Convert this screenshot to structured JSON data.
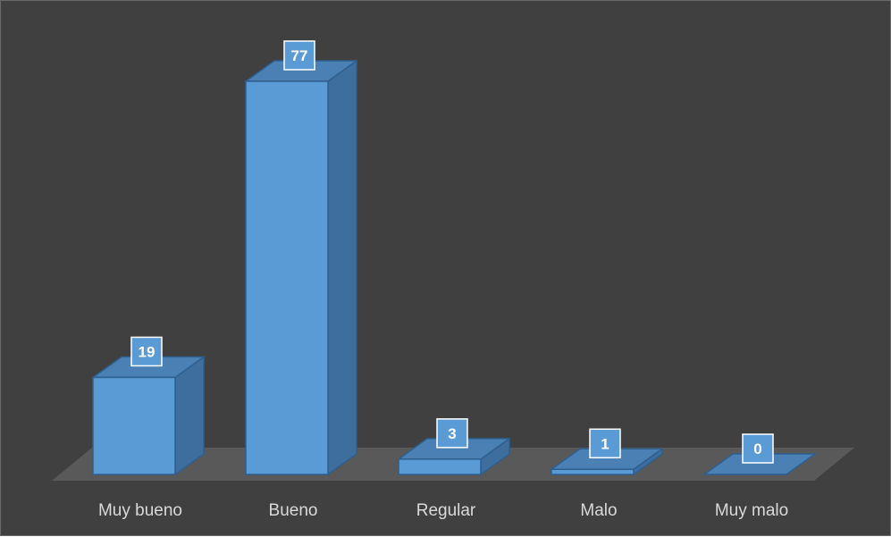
{
  "chart_data": {
    "type": "bar",
    "style": "3d-column",
    "categories": [
      "Muy bueno",
      "Bueno",
      "Regular",
      "Malo",
      "Muy malo"
    ],
    "values": [
      19,
      77,
      3,
      1,
      0
    ],
    "data_labels": [
      "19",
      "77",
      "3",
      "1",
      "0"
    ],
    "title": "",
    "xlabel": "",
    "ylabel": "",
    "ylim": [
      0,
      77
    ],
    "grid": false,
    "legend": "none",
    "colors": {
      "background": "#404040",
      "floor": "#595959",
      "bar_front": "#5b9bd5",
      "bar_top": "#4a80b3",
      "bar_side": "#3e6e9e",
      "bar_edge": "#2e5f8f",
      "category_text": "#d9d9d9",
      "data_label_text": "#ffffff",
      "data_label_border": "#ffffff"
    }
  }
}
